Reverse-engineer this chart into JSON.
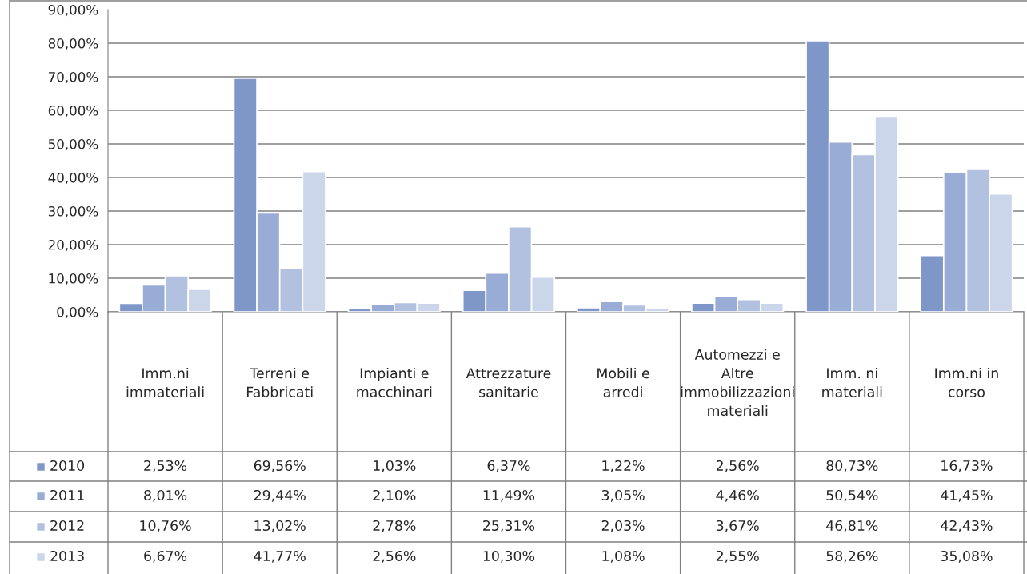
{
  "chart_data": {
    "type": "bar",
    "categories": [
      "Imm.ni immateriali",
      "Terreni e Fabbricati",
      "Impianti e macchinari",
      "Attrezzature sanitarie",
      "Mobili e arredi",
      "Automezzi e Altre immobilizzazioni materiali",
      "Imm. ni materiali",
      "Imm.ni in corso"
    ],
    "series": [
      {
        "name": "2010",
        "color": "#7f97c8",
        "values": [
          2.53,
          69.56,
          1.03,
          6.37,
          1.22,
          2.56,
          80.73,
          16.73
        ],
        "value_labels": [
          "2,53%",
          "69,56%",
          "1,03%",
          "6,37%",
          "1,22%",
          "2,56%",
          "80,73%",
          "16,73%"
        ]
      },
      {
        "name": "2011",
        "color": "#98acd6",
        "values": [
          8.01,
          29.44,
          2.1,
          11.49,
          3.05,
          4.46,
          50.54,
          41.45
        ],
        "value_labels": [
          "8,01%",
          "29,44%",
          "2,10%",
          "11,49%",
          "3,05%",
          "4,46%",
          "50,54%",
          "41,45%"
        ]
      },
      {
        "name": "2012",
        "color": "#b3c1e0",
        "values": [
          10.76,
          13.02,
          2.78,
          25.31,
          2.03,
          3.67,
          46.81,
          42.43
        ],
        "value_labels": [
          "10,76%",
          "13,02%",
          "2,78%",
          "25,31%",
          "2,03%",
          "3,67%",
          "46,81%",
          "42,43%"
        ]
      },
      {
        "name": "2013",
        "color": "#ccd6ea",
        "values": [
          6.67,
          41.77,
          2.56,
          10.3,
          1.08,
          2.55,
          58.26,
          35.08
        ],
        "value_labels": [
          "6,67%",
          "41,77%",
          "2,56%",
          "10,30%",
          "1,08%",
          "2,55%",
          "58,26%",
          "35,08%"
        ]
      }
    ],
    "ylim": [
      0,
      90
    ],
    "yticks": [
      {
        "value": 0,
        "label": "0,00%"
      },
      {
        "value": 10,
        "label": "10,00%"
      },
      {
        "value": 20,
        "label": "20,00%"
      },
      {
        "value": 30,
        "label": "30,00%"
      },
      {
        "value": 40,
        "label": "40,00%"
      },
      {
        "value": 50,
        "label": "50,00%"
      },
      {
        "value": 60,
        "label": "60,00%"
      },
      {
        "value": 70,
        "label": "70,00%"
      },
      {
        "value": 80,
        "label": "80,00%"
      },
      {
        "value": 90,
        "label": "90,00%"
      }
    ],
    "grid": "y",
    "legend": "bottom"
  }
}
